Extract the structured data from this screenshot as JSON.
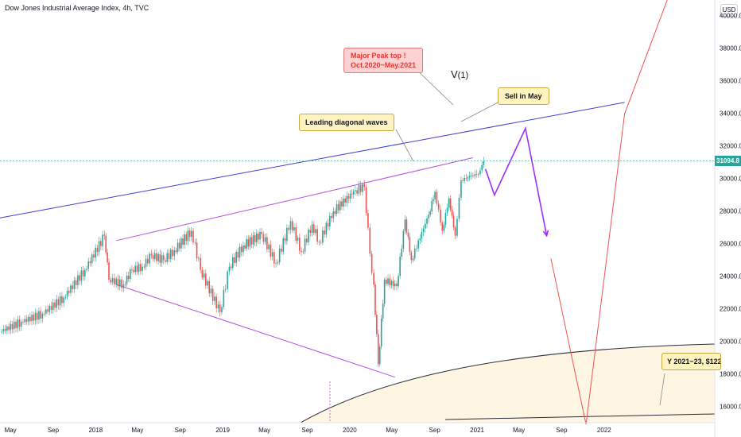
{
  "header": {
    "title": "Dow Jones Industrial Average Index, 4h, TVC",
    "currency": "USD",
    "last_price": "31094.8"
  },
  "colors": {
    "up": "#26a69a",
    "down": "#ef5350",
    "trendline": "#3f3fd1",
    "wedge": "#b44fe0",
    "projection": "#9b30ff",
    "red_line": "#ef5350",
    "arc": "#2a2e39",
    "arc_fill": "#fff4e0"
  },
  "annotations": {
    "peak": [
      "Major Peak top !",
      "Oct.2020~May.2021"
    ],
    "wave": "V",
    "wave_sub": "(1)",
    "sell": "Sell in May",
    "diagonal": "Leading diagonal waves",
    "arc": "Y 2021~23,  $122"
  },
  "chart_data": {
    "type": "line",
    "title": "Dow Jones Industrial Average Index, 4h, TVC",
    "ylabel": "USD",
    "xlabel": "",
    "ylim": [
      15000,
      41000
    ],
    "xlim": [
      "2017-04-01",
      "2022-11-15"
    ],
    "y_ticks": [
      16000,
      18000,
      20000,
      22000,
      24000,
      26000,
      28000,
      30000,
      32000,
      34000,
      36000,
      38000,
      40000
    ],
    "x_ticks": [
      {
        "label": "May",
        "date": "2017-05-01"
      },
      {
        "label": "Sep",
        "date": "2017-09-01"
      },
      {
        "label": "2018",
        "date": "2018-01-01"
      },
      {
        "label": "May",
        "date": "2018-05-01"
      },
      {
        "label": "Sep",
        "date": "2018-09-01"
      },
      {
        "label": "2019",
        "date": "2019-01-01"
      },
      {
        "label": "May",
        "date": "2019-05-01"
      },
      {
        "label": "Sep",
        "date": "2019-09-01"
      },
      {
        "label": "2020",
        "date": "2020-01-01"
      },
      {
        "label": "May",
        "date": "2020-05-01"
      },
      {
        "label": "Sep",
        "date": "2020-09-01"
      },
      {
        "label": "2021",
        "date": "2021-01-01"
      },
      {
        "label": "May",
        "date": "2021-05-01"
      },
      {
        "label": "Sep",
        "date": "2021-09-01"
      },
      {
        "label": "2022",
        "date": "2022-01-01"
      }
    ],
    "grid": false,
    "last_value": 31094.8,
    "series": [
      {
        "values": [
          [
            "2017-04-01",
            20600
          ],
          [
            "2017-06-01",
            21200
          ],
          [
            "2017-08-01",
            21700
          ],
          [
            "2017-10-01",
            22700
          ],
          [
            "2017-12-01",
            24400
          ],
          [
            "2018-01-26",
            26500
          ],
          [
            "2018-02-08",
            23800
          ],
          [
            "2018-03-22",
            23500
          ],
          [
            "2018-04-15",
            24400
          ],
          [
            "2018-05-15",
            24600
          ],
          [
            "2018-06-10",
            25300
          ],
          [
            "2018-07-15",
            25000
          ],
          [
            "2018-08-15",
            25600
          ],
          [
            "2018-10-03",
            26800
          ],
          [
            "2018-10-29",
            24400
          ],
          [
            "2018-12-24",
            21800
          ],
          [
            "2019-01-20",
            24600
          ],
          [
            "2019-03-01",
            25900
          ],
          [
            "2019-04-23",
            26600
          ],
          [
            "2019-06-03",
            24800
          ],
          [
            "2019-07-15",
            27400
          ],
          [
            "2019-08-15",
            25500
          ],
          [
            "2019-09-15",
            27200
          ],
          [
            "2019-10-05",
            26100
          ],
          [
            "2019-11-15",
            28000
          ],
          [
            "2020-01-17",
            29300
          ],
          [
            "2020-02-12",
            29500
          ],
          [
            "2020-02-28",
            25400
          ],
          [
            "2020-03-10",
            23500
          ],
          [
            "2020-03-23",
            18600
          ],
          [
            "2020-04-10",
            23800
          ],
          [
            "2020-05-15",
            23400
          ],
          [
            "2020-06-08",
            27500
          ],
          [
            "2020-06-26",
            25000
          ],
          [
            "2020-08-15",
            27800
          ],
          [
            "2020-09-02",
            29200
          ],
          [
            "2020-09-23",
            26800
          ],
          [
            "2020-10-12",
            28800
          ],
          [
            "2020-10-30",
            26500
          ],
          [
            "2020-11-16",
            29900
          ],
          [
            "2020-12-15",
            30200
          ],
          [
            "2021-01-05",
            30300
          ],
          [
            "2021-01-20",
            31094.8
          ]
        ]
      }
    ],
    "overlays": [
      {
        "kind": "trendline",
        "from": [
          "2017-04-01",
          27600
        ],
        "to": [
          "2022-03-01",
          34700
        ]
      },
      {
        "kind": "wedge-upper",
        "from": [
          "2018-03-01",
          26200
        ],
        "to": [
          "2020-12-20",
          31300
        ]
      },
      {
        "kind": "wedge-lower",
        "from": [
          "2018-03-01",
          23500
        ],
        "to": [
          "2020-05-10",
          17800
        ]
      },
      {
        "kind": "projection",
        "points": [
          [
            "2021-01-25",
            30600
          ],
          [
            "2021-02-20",
            29000
          ],
          [
            "2021-05-20",
            33100
          ],
          [
            "2021-07-20",
            26500
          ]
        ]
      },
      {
        "kind": "red-projection",
        "points": [
          [
            "2021-08-01",
            25100
          ],
          [
            "2021-11-10",
            14900
          ],
          [
            "2022-03-01",
            34000
          ],
          [
            "2022-07-10",
            41500
          ]
        ]
      }
    ]
  }
}
